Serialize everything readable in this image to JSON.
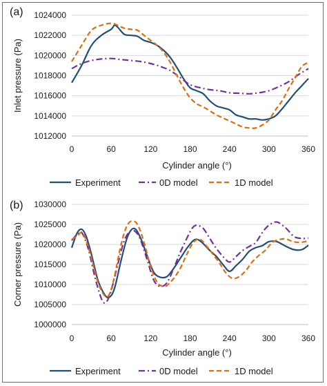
{
  "chart_data": [
    {
      "panel_label": "(a)",
      "type": "line",
      "xlabel": "Cylinder angle (°)",
      "ylabel": "Inlet pressure (Pa)",
      "xlim": [
        0,
        360
      ],
      "ylim": [
        1012000,
        1024000
      ],
      "x_ticks": [
        "0",
        "60",
        "120",
        "180",
        "240",
        "300",
        "360"
      ],
      "y_ticks": [
        "1012000",
        "1014000",
        "1016000",
        "1018000",
        "1020000",
        "1022000",
        "1024000"
      ],
      "grid": "horizontal",
      "legend": "bottom",
      "series": [
        {
          "name": "Experiment",
          "color": "#1f4e79",
          "dash": "solid",
          "x": [
            0,
            15,
            30,
            45,
            60,
            65,
            70,
            80,
            90,
            100,
            110,
            120,
            130,
            140,
            150,
            160,
            170,
            180,
            190,
            200,
            210,
            220,
            230,
            240,
            250,
            260,
            270,
            280,
            290,
            300,
            310,
            320,
            330,
            340,
            350,
            360
          ],
          "y": [
            1017300,
            1019000,
            1021000,
            1022000,
            1022600,
            1023000,
            1022800,
            1022100,
            1022000,
            1021900,
            1021500,
            1021300,
            1021000,
            1020500,
            1019800,
            1018800,
            1017700,
            1016800,
            1016500,
            1016200,
            1015500,
            1015000,
            1014800,
            1014600,
            1014100,
            1013900,
            1013700,
            1013700,
            1013600,
            1013700,
            1014000,
            1014700,
            1015500,
            1016300,
            1017000,
            1017700
          ]
        },
        {
          "name": "0D model",
          "color": "#7030a0",
          "dash": "dashdot",
          "x": [
            0,
            15,
            30,
            45,
            60,
            75,
            90,
            105,
            120,
            135,
            150,
            165,
            180,
            195,
            210,
            225,
            240,
            255,
            270,
            285,
            300,
            315,
            330,
            345,
            360
          ],
          "y": [
            1018700,
            1019200,
            1019500,
            1019650,
            1019700,
            1019600,
            1019500,
            1019400,
            1019200,
            1018900,
            1018500,
            1017800,
            1017100,
            1016800,
            1016600,
            1016500,
            1016300,
            1016250,
            1016200,
            1016300,
            1016500,
            1016900,
            1017400,
            1018100,
            1018700
          ]
        },
        {
          "name": "1D model",
          "color": "#e36c0a",
          "dash": "dashed",
          "x": [
            0,
            15,
            30,
            45,
            60,
            70,
            80,
            90,
            100,
            110,
            120,
            130,
            140,
            150,
            160,
            170,
            180,
            190,
            200,
            210,
            220,
            230,
            240,
            250,
            260,
            270,
            280,
            290,
            300,
            310,
            320,
            330,
            340,
            350,
            360
          ],
          "y": [
            1019400,
            1021000,
            1022500,
            1023000,
            1023200,
            1023000,
            1022700,
            1022600,
            1022500,
            1022000,
            1021500,
            1021000,
            1020300,
            1019300,
            1018000,
            1016800,
            1015800,
            1015200,
            1014900,
            1014500,
            1014100,
            1013800,
            1013500,
            1013200,
            1012900,
            1012800,
            1012800,
            1013100,
            1013600,
            1014600,
            1015500,
            1016700,
            1017800,
            1018900,
            1019300
          ]
        }
      ]
    },
    {
      "panel_label": "(b)",
      "type": "line",
      "xlabel": "Cylinder angle (°)",
      "ylabel": "Corner pressure (Pa)",
      "xlim": [
        0,
        360
      ],
      "ylim": [
        1000000,
        1030000
      ],
      "x_ticks": [
        "0",
        "60",
        "120",
        "180",
        "240",
        "300",
        "360"
      ],
      "y_ticks": [
        "1000000",
        "1005000",
        "1010000",
        "1015000",
        "1020000",
        "1025000",
        "1030000"
      ],
      "grid": "horizontal",
      "legend": "bottom",
      "series": [
        {
          "name": "Experiment",
          "color": "#1f4e79",
          "dash": "solid",
          "x": [
            0,
            8,
            15,
            22,
            30,
            40,
            50,
            57,
            65,
            75,
            85,
            95,
            105,
            115,
            125,
            135,
            145,
            155,
            165,
            175,
            185,
            192,
            200,
            210,
            220,
            230,
            240,
            250,
            260,
            270,
            280,
            290,
            300,
            312,
            325,
            338,
            350,
            360
          ],
          "y": [
            1019200,
            1022800,
            1023800,
            1022000,
            1017500,
            1011000,
            1007500,
            1006800,
            1009000,
            1016000,
            1022000,
            1024000,
            1021500,
            1017000,
            1013000,
            1011800,
            1012000,
            1014000,
            1016500,
            1019000,
            1021000,
            1021200,
            1020200,
            1018500,
            1017000,
            1015000,
            1013300,
            1014700,
            1016300,
            1018300,
            1019200,
            1019700,
            1020700,
            1020700,
            1019600,
            1018700,
            1018700,
            1019800
          ]
        },
        {
          "name": "0D model",
          "color": "#7030a0",
          "dash": "dashdot",
          "x": [
            0,
            8,
            15,
            25,
            35,
            45,
            52,
            60,
            70,
            80,
            90,
            98,
            105,
            115,
            125,
            135,
            145,
            155,
            165,
            175,
            183,
            190,
            200,
            210,
            220,
            230,
            240,
            250,
            260,
            270,
            280,
            290,
            300,
            312,
            325,
            338,
            350,
            360
          ],
          "y": [
            1021000,
            1022500,
            1023000,
            1019000,
            1012000,
            1006500,
            1005500,
            1008500,
            1015000,
            1021000,
            1023500,
            1023000,
            1021000,
            1016000,
            1011000,
            1009500,
            1010500,
            1014000,
            1018000,
            1021500,
            1024000,
            1024800,
            1024000,
            1021500,
            1019000,
            1017000,
            1015600,
            1017000,
            1018500,
            1019500,
            1020500,
            1023000,
            1024800,
            1025600,
            1024200,
            1022000,
            1021500,
            1021600
          ]
        },
        {
          "name": "1D model",
          "color": "#e36c0a",
          "dash": "dashed",
          "x": [
            0,
            8,
            15,
            22,
            30,
            40,
            50,
            57,
            65,
            75,
            85,
            95,
            102,
            110,
            120,
            130,
            140,
            145,
            155,
            165,
            175,
            185,
            195,
            205,
            215,
            225,
            235,
            245,
            255,
            265,
            275,
            285,
            295,
            305,
            315,
            325,
            335,
            345,
            355,
            360
          ],
          "y": [
            1021300,
            1022000,
            1023000,
            1021000,
            1016500,
            1010500,
            1007200,
            1007500,
            1012000,
            1020000,
            1025000,
            1025800,
            1024300,
            1020500,
            1014500,
            1010500,
            1009500,
            1009800,
            1011500,
            1014000,
            1017500,
            1020500,
            1021300,
            1019600,
            1017500,
            1015300,
            1012800,
            1011500,
            1012000,
            1013500,
            1015700,
            1017300,
            1018600,
            1020500,
            1021200,
            1021400,
            1020800,
            1020500,
            1020700,
            1021000
          ]
        }
      ]
    }
  ]
}
